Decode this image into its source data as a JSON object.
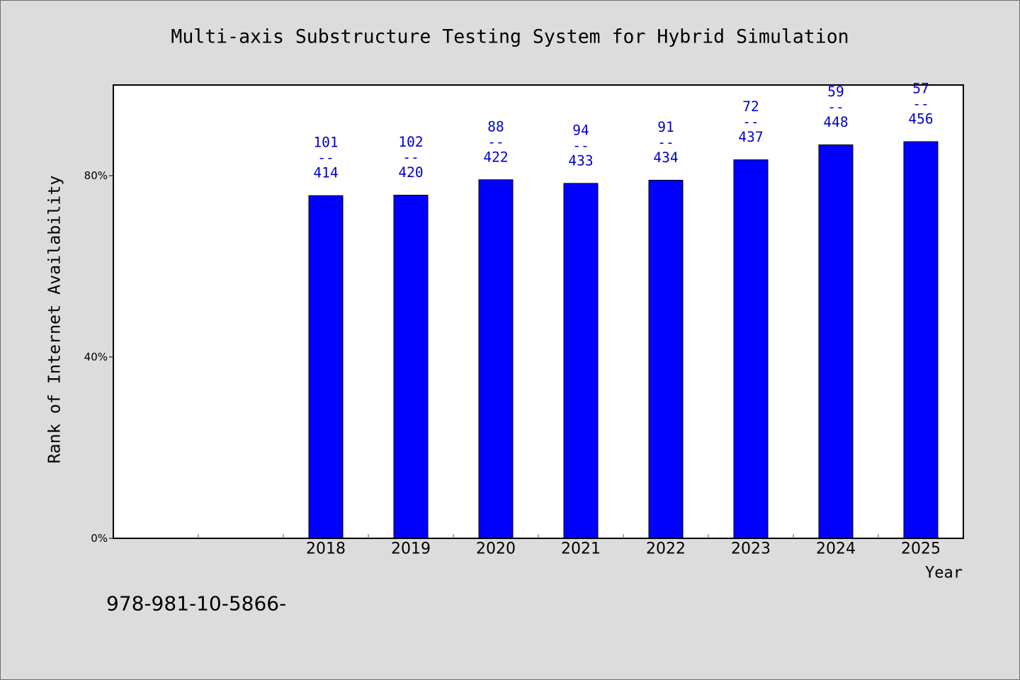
{
  "chart_data": {
    "type": "bar",
    "title": "Multi-axis Substructure Testing System for Hybrid Simulation",
    "xlabel": "Year",
    "ylabel": "Rank of Internet Availability",
    "categories": [
      "",
      "",
      "2018",
      "2019",
      "2020",
      "2021",
      "2022",
      "2023",
      "2024",
      "2025"
    ],
    "values": [
      null,
      null,
      75.6,
      75.7,
      79.1,
      78.3,
      79.0,
      83.5,
      86.8,
      87.5
    ],
    "data_labels": [
      null,
      null,
      [
        "101",
        "--",
        "414"
      ],
      [
        "102",
        "--",
        "420"
      ],
      [
        "88",
        "--",
        "422"
      ],
      [
        "94",
        "--",
        "433"
      ],
      [
        "91",
        "--",
        "434"
      ],
      [
        "72",
        "--",
        "437"
      ],
      [
        "59",
        "--",
        "448"
      ],
      [
        "57",
        "--",
        "456"
      ]
    ],
    "ylim": [
      0,
      100
    ],
    "yticks": [
      0,
      40,
      80
    ],
    "ytick_labels": [
      "0%",
      "40%",
      "80%"
    ],
    "grid": false,
    "colors": {
      "background": "#dcdcdc",
      "plot_background": "#ffffff",
      "bar": "#0000ff",
      "bar_edge": "#000000",
      "data_label": "#0000cd"
    }
  },
  "footnote": "978-981-10-5866-"
}
